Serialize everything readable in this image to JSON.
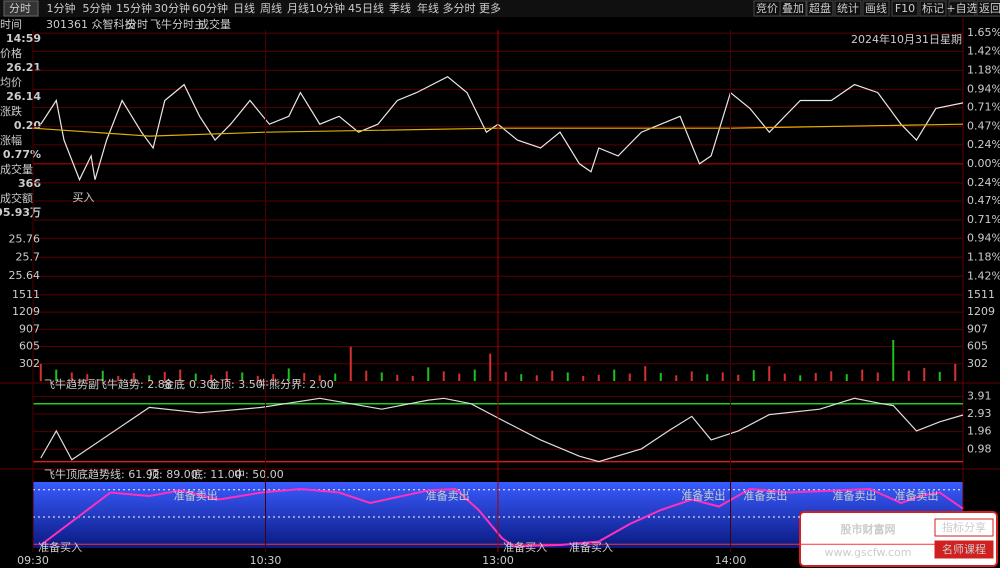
{
  "toolbar": {
    "tabs": [
      "分时",
      "1分钟",
      "5分钟",
      "15分钟",
      "30分钟",
      "60分钟",
      "日线",
      "周线",
      "月线",
      "10分钟",
      "45日线",
      "季线",
      "年线",
      "多分时",
      "更多"
    ],
    "buttons": [
      "竞价",
      "叠加",
      "超盘",
      "统计",
      "画线",
      "F10",
      "标记",
      "+自选",
      "返回"
    ]
  },
  "header": {
    "code_name": "301361 众智科技",
    "mode": "分时",
    "indicator": "飞牛分时主",
    "volume_label": "成交量",
    "date": "2024年10月31日星期"
  },
  "info": {
    "rows": [
      [
        "时间",
        "14:59"
      ],
      [
        "价格",
        "26.21"
      ],
      [
        "均价",
        "26.14"
      ],
      [
        "涨跌",
        "0.20"
      ],
      [
        "涨幅",
        "0.77%"
      ],
      [
        "成交量",
        "366"
      ],
      [
        "成交额",
        "95.93万"
      ]
    ]
  },
  "watermark": {
    "name": "股市财富网",
    "url": "www.gscfw.com",
    "buttons": [
      "指标分享",
      "名师课程"
    ]
  },
  "chart_data": [
    {
      "type": "line",
      "xlim": [
        0,
        240
      ],
      "ylim": [
        -1.53,
        1.69
      ],
      "yticks": [
        {
          "value": 1.65,
          "label": "1.65%"
        },
        {
          "value": 1.42,
          "label": "1.42%"
        },
        {
          "value": 1.18,
          "label": "1.18%"
        },
        {
          "value": 0.94,
          "label": "0.94%"
        },
        {
          "value": 0.71,
          "label": "0.71%"
        },
        {
          "value": 0.47,
          "label": "0.47%"
        },
        {
          "value": 0.24,
          "label": "0.24%"
        },
        {
          "value": 0,
          "label": "0.00%"
        },
        {
          "value": -0.24,
          "label": "0.24%"
        },
        {
          "value": -0.47,
          "label": "0.47%"
        },
        {
          "value": -0.71,
          "label": "0.71%"
        },
        {
          "value": -0.94,
          "label": "0.94%"
        },
        {
          "value": -1.18,
          "label": "1.18%"
        },
        {
          "value": -1.42,
          "label": "1.42%"
        }
      ],
      "y2lim": [
        25.61,
        26.45
      ],
      "y2ticks": [
        25.76,
        25.7,
        25.64
      ],
      "series": [
        {
          "color": "#e8e8e8",
          "x": [
            2,
            6,
            8,
            12,
            15,
            16,
            19,
            23,
            28,
            31,
            34,
            39,
            43,
            47,
            51,
            56,
            61,
            66,
            69,
            74,
            79,
            84,
            89,
            94,
            99,
            107,
            112,
            117,
            120,
            125,
            131,
            136,
            141,
            144,
            146,
            151,
            157,
            162,
            167,
            172,
            175,
            180,
            185,
            190,
            198,
            206,
            212,
            218,
            224,
            228,
            233,
            240
          ],
          "values": [
            0.5,
            0.8,
            0.3,
            -0.2,
            0.1,
            -0.2,
            0.3,
            0.8,
            0.4,
            0.2,
            0.8,
            1.0,
            0.6,
            0.3,
            0.5,
            0.8,
            0.5,
            0.6,
            0.9,
            0.5,
            0.6,
            0.4,
            0.5,
            0.8,
            0.9,
            1.1,
            0.9,
            0.4,
            0.5,
            0.3,
            0.2,
            0.4,
            0.0,
            -0.1,
            0.2,
            0.1,
            0.4,
            0.5,
            0.6,
            0.0,
            0.1,
            0.9,
            0.7,
            0.4,
            0.8,
            0.8,
            1.0,
            0.9,
            0.5,
            0.3,
            0.7,
            0.77
          ]
        },
        {
          "color": "#e0b000",
          "x": [
            0,
            30,
            60,
            120,
            180,
            240
          ],
          "values": [
            0.45,
            0.35,
            0.4,
            0.45,
            0.45,
            0.5
          ]
        }
      ],
      "annotations": [
        {
          "text": "买入",
          "x": 13,
          "y": -0.43,
          "color": "#e03030"
        }
      ]
    },
    {
      "type": "bar",
      "xlim": [
        0,
        240
      ],
      "ylim": [
        0,
        1650
      ],
      "yticks": [
        302,
        605,
        907,
        1209,
        1511
      ],
      "color": "#d83030",
      "x": [
        2,
        6,
        10,
        14,
        18,
        22,
        26,
        30,
        34,
        38,
        42,
        46,
        50,
        54,
        58,
        62,
        66,
        70,
        74,
        78,
        82,
        86,
        90,
        94,
        98,
        102,
        106,
        110,
        114,
        118,
        122,
        126,
        130,
        134,
        138,
        142,
        146,
        150,
        154,
        158,
        162,
        166,
        170,
        174,
        178,
        182,
        186,
        190,
        194,
        198,
        202,
        206,
        210,
        214,
        218,
        222,
        226,
        230,
        234,
        238
      ],
      "values": [
        300,
        200,
        150,
        120,
        180,
        90,
        140,
        100,
        160,
        200,
        130,
        110,
        170,
        150,
        90,
        120,
        220,
        140,
        100,
        130,
        600,
        180,
        150,
        110,
        90,
        240,
        170,
        130,
        200,
        480,
        160,
        120,
        100,
        180,
        150,
        90,
        110,
        200,
        130,
        260,
        140,
        100,
        170,
        120,
        150,
        110,
        190,
        260,
        130,
        100,
        140,
        170,
        120,
        200,
        150,
        720,
        180,
        230,
        160,
        300
      ]
    },
    {
      "type": "line",
      "title": "飞牛趋势副",
      "legend": [
        "飞牛趋势: 2.88",
        "金底",
        "0.30",
        "金顶: 3.50",
        "牛熊分界: 2.00"
      ],
      "xlim": [
        0,
        240
      ],
      "ylim": [
        0,
        4.15
      ],
      "yticks": [
        3.91,
        2.93,
        1.96,
        0.98
      ],
      "hlines": [
        {
          "value": 3.5,
          "color": "#22cc22"
        },
        {
          "value": 0.3,
          "color": "#cc2222"
        }
      ],
      "series": [
        {
          "color": "#dddddd",
          "x": [
            2,
            6,
            10,
            30,
            43,
            59,
            74,
            90,
            102,
            106,
            113,
            121,
            131,
            141,
            146,
            157,
            164,
            170,
            175,
            182,
            190,
            203,
            212,
            219,
            222,
            228,
            234,
            240
          ],
          "values": [
            0.5,
            2.0,
            0.4,
            3.3,
            3.0,
            3.3,
            3.8,
            3.2,
            3.7,
            3.8,
            3.5,
            2.6,
            1.5,
            0.6,
            0.3,
            1.0,
            2.0,
            2.8,
            1.5,
            2.0,
            2.9,
            3.2,
            3.8,
            3.5,
            3.4,
            2.0,
            2.5,
            2.88
          ]
        }
      ]
    },
    {
      "type": "line",
      "title": "飞牛顶底",
      "legend": [
        "趋势线: 61.92",
        "顶: 89.00",
        "底: 11.00",
        "中: 50.00"
      ],
      "xlim": [
        0,
        240
      ],
      "ylim": [
        0,
        100
      ],
      "xticks": [
        {
          "value": 0,
          "label": "09:30"
        },
        {
          "value": 60,
          "label": "10:30"
        },
        {
          "value": 120,
          "label": "13:00"
        },
        {
          "value": 180,
          "label": "14:00"
        }
      ],
      "hlines": [
        {
          "value": 89,
          "color": "#ffffff"
        },
        {
          "value": 50,
          "color": "#ffffff"
        },
        {
          "value": 11,
          "color": "#ff3030"
        }
      ],
      "series": [
        {
          "color": "#ff30c0",
          "x": [
            2,
            20,
            30,
            38,
            48,
            59,
            69,
            79,
            87,
            102,
            109,
            115,
            121,
            124,
            136,
            146,
            154,
            162,
            170,
            177,
            185,
            195,
            208,
            216,
            224,
            229,
            234,
            240
          ],
          "values": [
            10,
            85,
            80,
            88,
            75,
            85,
            90,
            85,
            70,
            88,
            90,
            60,
            20,
            8,
            10,
            15,
            40,
            60,
            75,
            65,
            90,
            85,
            88,
            90,
            70,
            80,
            85,
            61.92
          ]
        }
      ],
      "annotations": [
        {
          "text": "准备卖出",
          "x": 42,
          "y": 79,
          "color": "#ffffff"
        },
        {
          "text": "准备卖出",
          "x": 107,
          "y": 79,
          "color": "#ffffff"
        },
        {
          "text": "准备卖出",
          "x": 173,
          "y": 79,
          "color": "#ffffff"
        },
        {
          "text": "准备卖出",
          "x": 189,
          "y": 79,
          "color": "#ffffff"
        },
        {
          "text": "准备卖出",
          "x": 212,
          "y": 79,
          "color": "#ffffff"
        },
        {
          "text": "准备卖出",
          "x": 228,
          "y": 79,
          "color": "#ffffff"
        },
        {
          "text": "准备买入",
          "x": 7,
          "y": 6,
          "color": "#ffe000"
        },
        {
          "text": "准备买入",
          "x": 127,
          "y": 6,
          "color": "#ffe000"
        },
        {
          "text": "准备买入",
          "x": 144,
          "y": 6,
          "color": "#ffe000"
        }
      ]
    }
  ]
}
